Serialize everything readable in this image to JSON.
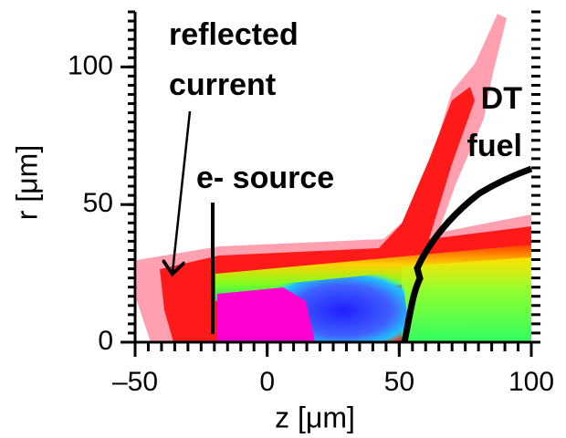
{
  "chart_data": {
    "type": "heatmap",
    "xlabel": "z  [μm]",
    "ylabel": "r  [μm]",
    "xlim": [
      -50,
      100
    ],
    "ylim": [
      0,
      120
    ],
    "xticks": [
      {
        "value": -50,
        "label": "–50"
      },
      0,
      50,
      100
    ],
    "yticks": [
      0,
      50,
      100
    ],
    "annotations": [
      {
        "lines": [
          "reflected",
          "current"
        ]
      },
      {
        "lines": [
          "e- source"
        ]
      },
      {
        "lines": [
          "DT",
          "fuel"
        ]
      }
    ]
  }
}
